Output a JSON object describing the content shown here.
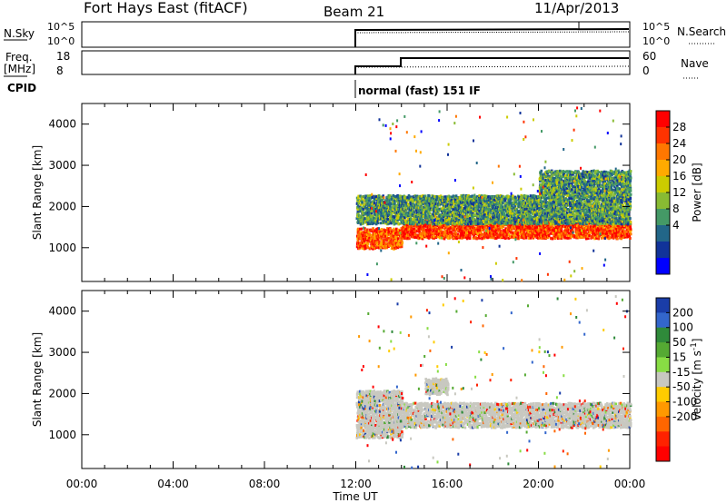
{
  "header": {
    "station": "Fort Hays East (fitACF)",
    "beam": "Beam 21",
    "date": "11/Apr/2013"
  },
  "params_panel": {
    "nsky_label": "N.Sky",
    "nsky_ticks": [
      "10^5",
      "10^0"
    ],
    "nsearch_label": "N.Search",
    "nsearch_ticks": [
      "10^5",
      "10^0"
    ],
    "freq_label": "Freq.",
    "freq_unit": "[MHz]",
    "freq_ticks": [
      "18",
      "8"
    ],
    "nave_label": "Nave",
    "nave_ticks": [
      "60",
      "0"
    ],
    "cpid_label": "CPID",
    "cpid_text": "normal (fast) 151 IF",
    "colors": {
      "line": "#000000"
    }
  },
  "chart_data": [
    {
      "type": "heatmap",
      "name": "power",
      "ylabel": "Slant Range [km]",
      "xlabel": "Time UT",
      "x_ticks": [
        "00:00",
        "04:00",
        "08:00",
        "12:00",
        "16:00",
        "20:00",
        "00:00"
      ],
      "x_tick_hours": [
        0,
        4,
        8,
        12,
        16,
        20,
        24
      ],
      "xlim_hours": [
        0,
        24
      ],
      "y_ticks": [
        1000,
        2000,
        3000,
        4000
      ],
      "ylim_km": [
        180,
        4500
      ],
      "colorbar_label": "Power [dB]",
      "colorbar_ticks": [
        "28",
        "24",
        "20",
        "16",
        "12",
        "8",
        "4"
      ],
      "colorbar_values": [
        28,
        24,
        20,
        16,
        12,
        8,
        4
      ],
      "colorbar_colors": [
        "#ff0000",
        "#ff3300",
        "#ff7700",
        "#ffaa00",
        "#cccc00",
        "#88bb33",
        "#449966",
        "#226688",
        "#113399",
        "#0000ff"
      ],
      "data_start_hour": 12.0,
      "data_end_hour": 24.0,
      "bands": [
        {
          "t0": 12.0,
          "t1": 14.0,
          "r0": 1000,
          "r1": 1500,
          "level": 26
        },
        {
          "t0": 14.0,
          "t1": 24.0,
          "r0": 1250,
          "r1": 1700,
          "level": 27
        },
        {
          "t0": 12.0,
          "t1": 24.0,
          "r0": 1600,
          "r1": 2300,
          "level": 12
        },
        {
          "t0": 20.0,
          "t1": 24.0,
          "r0": 2300,
          "r1": 2900,
          "level": 12
        }
      ]
    },
    {
      "type": "heatmap",
      "name": "velocity",
      "ylabel": "Slant Range [km]",
      "xlabel": "Time UT",
      "x_ticks": [
        "00:00",
        "04:00",
        "08:00",
        "12:00",
        "16:00",
        "20:00",
        "00:00"
      ],
      "x_tick_hours": [
        0,
        4,
        8,
        12,
        16,
        20,
        24
      ],
      "xlim_hours": [
        0,
        24
      ],
      "y_ticks": [
        1000,
        2000,
        3000,
        4000
      ],
      "ylim_km": [
        180,
        4500
      ],
      "colorbar_label": "Velocity [m s",
      "colorbar_label_sup": "-1",
      "colorbar_label_end": "]",
      "colorbar_ticks": [
        "200",
        "100",
        "50",
        "15",
        "-15",
        "-50",
        "-100",
        "-200"
      ],
      "colorbar_values": [
        200,
        100,
        50,
        15,
        -15,
        -50,
        -100,
        -200
      ],
      "colorbar_colors": [
        "#1a3da8",
        "#3366cc",
        "#2f8a3a",
        "#55aa33",
        "#88dd44",
        "#c8c8c0",
        "#ffcc00",
        "#ff9900",
        "#ff6600",
        "#ff2200",
        "#ff0000"
      ],
      "ground_scatter_color": "#c8c8c0",
      "data_start_hour": 12.0,
      "data_end_hour": 24.0,
      "bands": [
        {
          "t0": 12.0,
          "t1": 14.0,
          "r0": 950,
          "r1": 2100,
          "level": 0
        },
        {
          "t0": 14.0,
          "t1": 24.0,
          "r0": 1200,
          "r1": 1800,
          "level": 0
        },
        {
          "t0": 15.0,
          "t1": 16.0,
          "r0": 2000,
          "r1": 2400,
          "level": 0
        }
      ]
    }
  ]
}
